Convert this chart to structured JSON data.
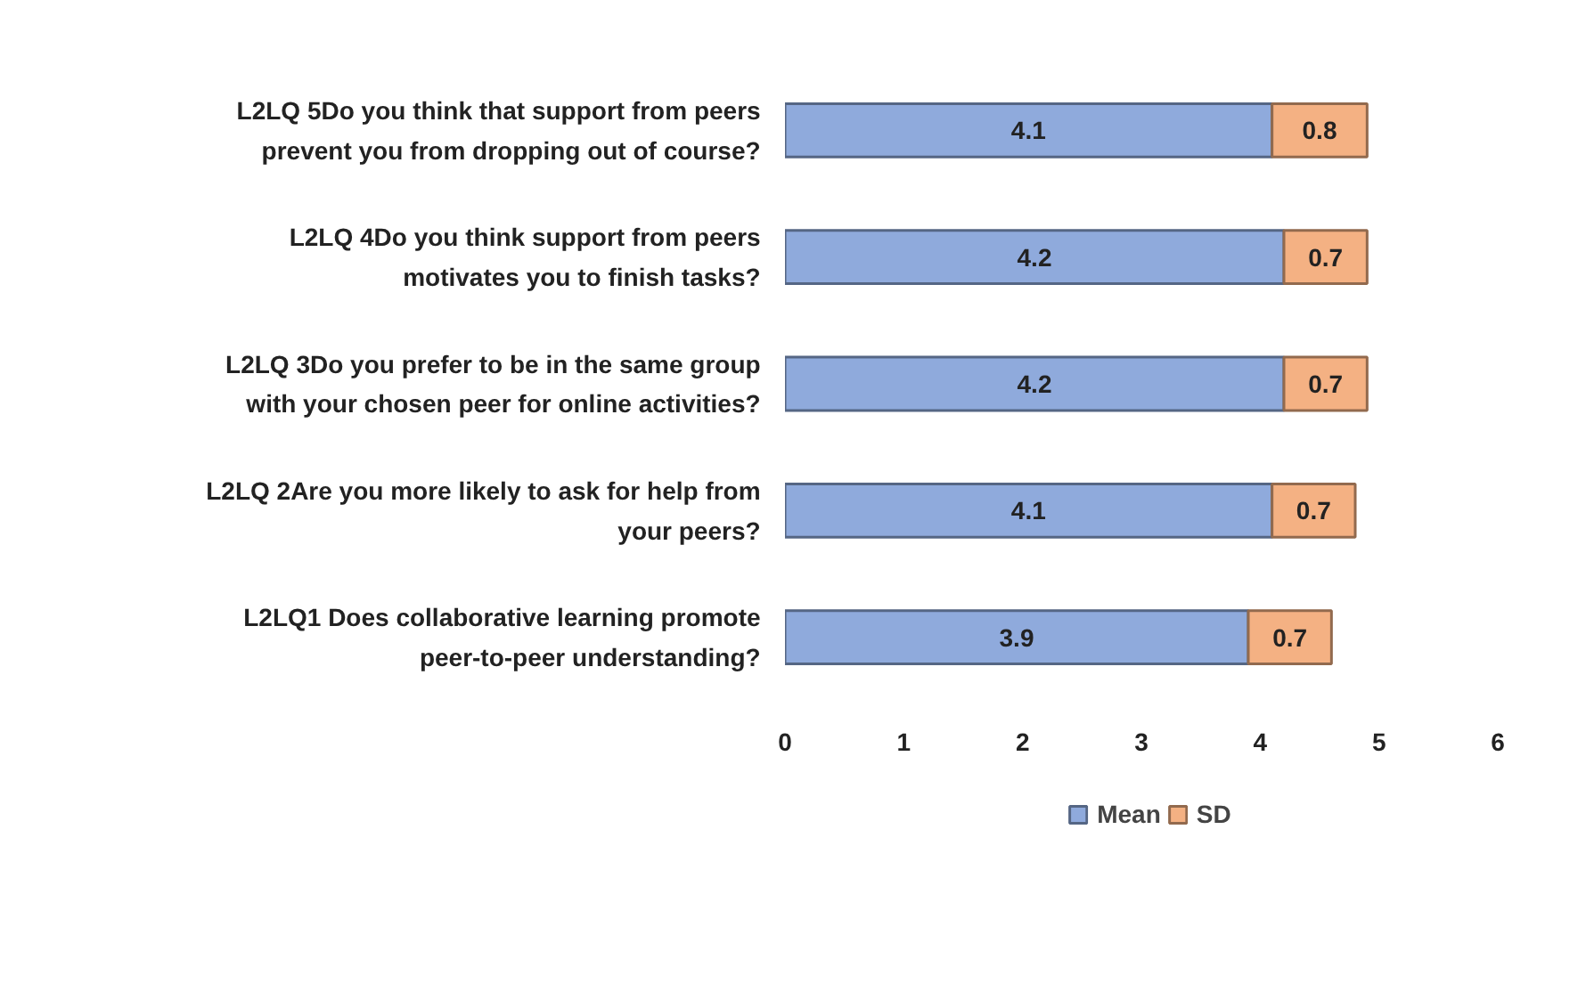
{
  "chart_data": {
    "type": "bar",
    "orientation": "horizontal",
    "stacked": true,
    "categories": [
      "L2LQ 5Do you think that support from peers prevent you from dropping out of course?",
      "L2LQ 4Do you think support from peers motivates you to finish tasks?",
      "L2LQ 3Do you prefer to be in the same group with your chosen peer for online activities?",
      "L2LQ 2Are you more likely to ask for help from your peers?",
      "L2LQ1 Does collaborative learning promote peer-to-peer understanding?"
    ],
    "series": [
      {
        "name": "Mean",
        "color": "#8faadc",
        "values": [
          4.1,
          4.2,
          4.2,
          4.1,
          3.9
        ]
      },
      {
        "name": "SD",
        "color": "#f4b183",
        "values": [
          0.8,
          0.7,
          0.7,
          0.7,
          0.7
        ]
      }
    ],
    "xlim": [
      0,
      6
    ],
    "xticks": [
      0,
      1,
      2,
      3,
      4,
      5,
      6
    ],
    "data_labels": true,
    "legend": "bottom",
    "grid": false
  }
}
